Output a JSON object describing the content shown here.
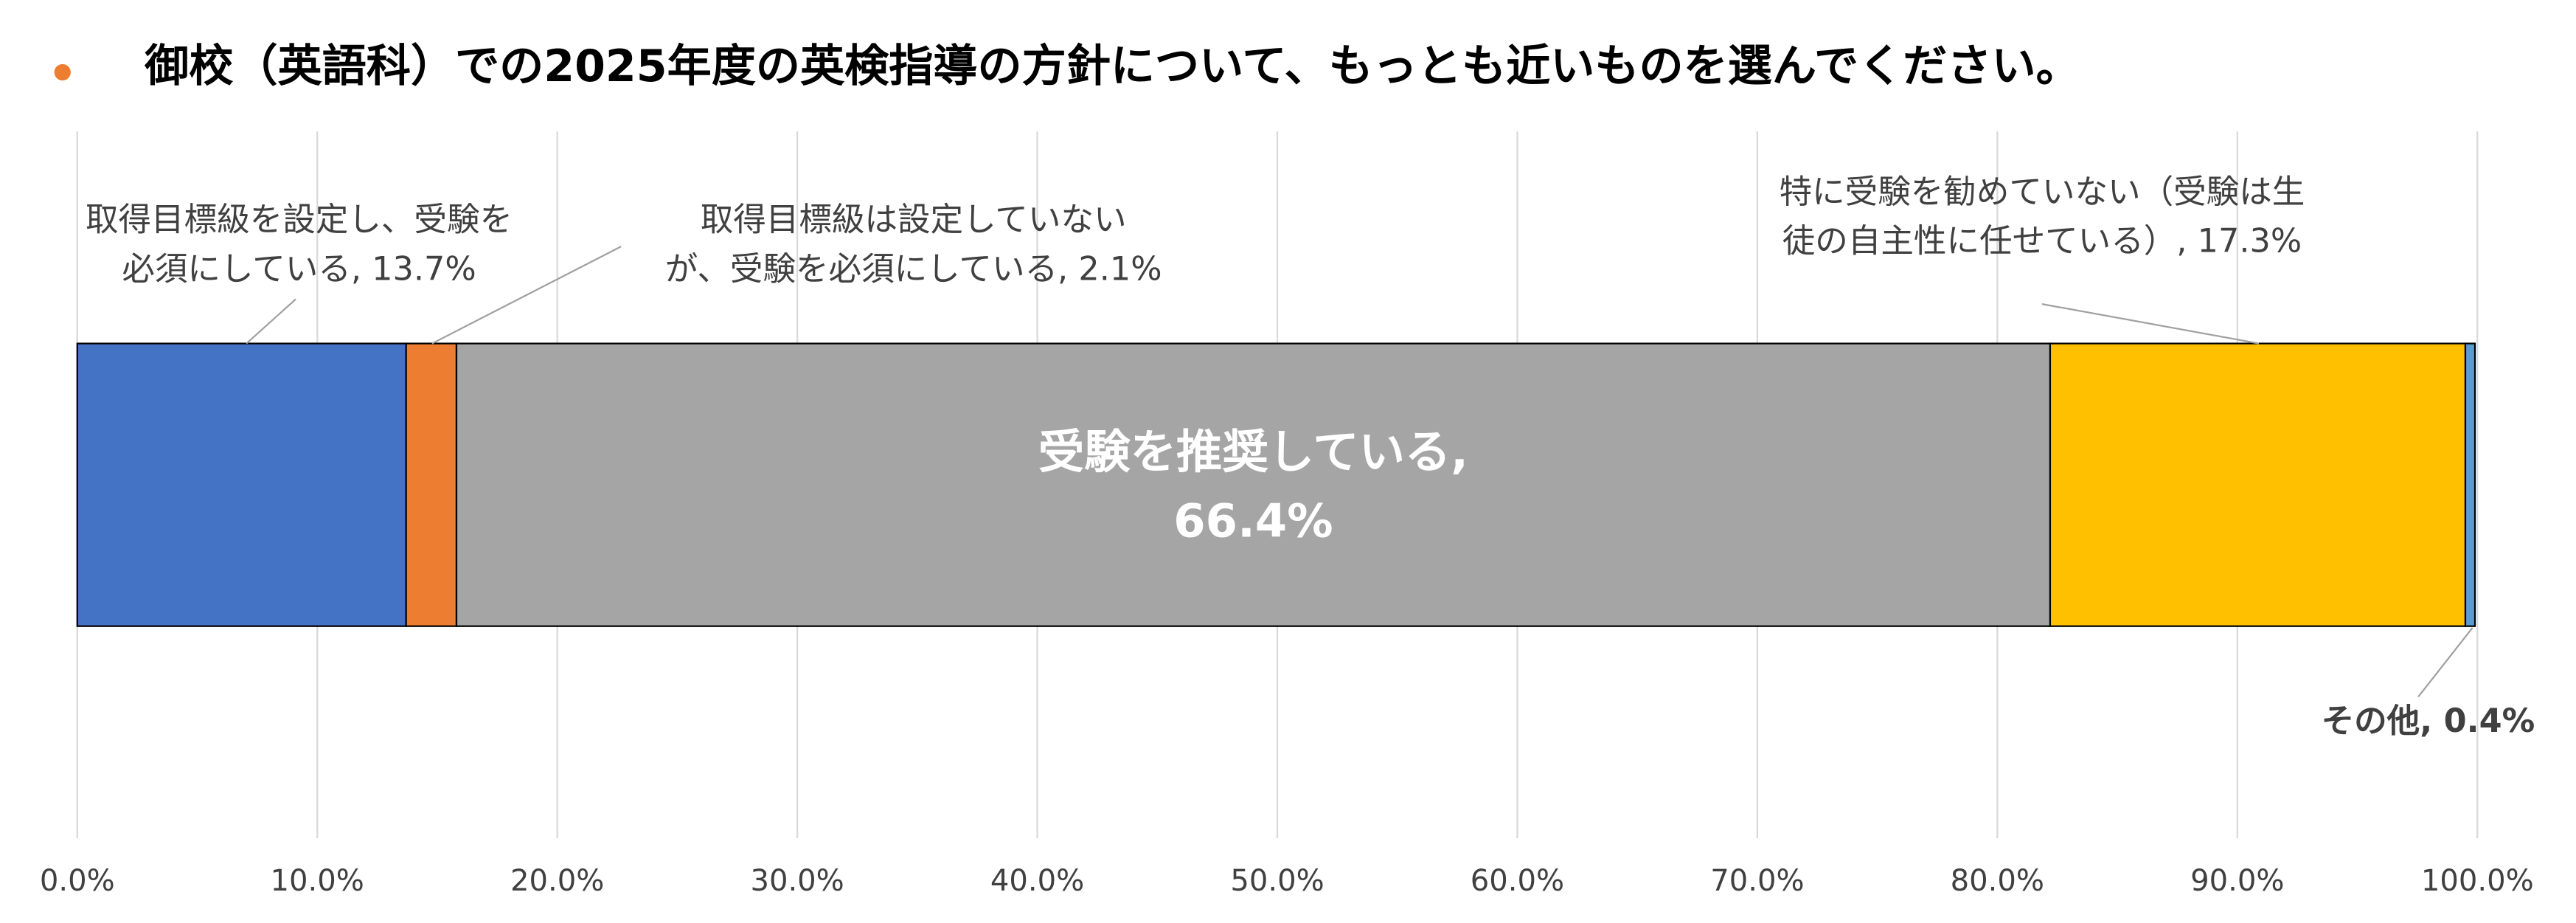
{
  "chart_data": {
    "type": "stacked-bar-horizontal",
    "title": "御校（英語科）での2025年度の英検指導の方針について、もっとも近いものを選んでください。",
    "series": [
      {
        "color": "#4472c4",
        "values": [
          13.7
        ],
        "value_labels": [
          "取得目標級を設定し、受験を\n必須にしている, 13.7%"
        ]
      },
      {
        "color": "#ed7d31",
        "values": [
          2.1
        ],
        "value_labels": [
          "取得目標級は設定していない\nが、受験を必須にしている, 2.1%"
        ]
      },
      {
        "color": "#a5a5a5",
        "values": [
          66.4
        ],
        "value_labels": [
          "受験を推奨している,\n66.4%"
        ]
      },
      {
        "color": "#ffc000",
        "values": [
          17.3
        ],
        "value_labels": [
          "特に受験を勧めていない（受験は生\n徒の自主性に任せている）, 17.3%"
        ]
      },
      {
        "color": "#5b9bd5",
        "values": [
          0.4
        ],
        "value_labels": [
          "その他, 0.4%"
        ]
      }
    ],
    "xlim": [
      0,
      100
    ],
    "xticks": [
      {
        "value": 0,
        "label": "0.0%"
      },
      {
        "value": 10,
        "label": "10.0%"
      },
      {
        "value": 20,
        "label": "20.0%"
      },
      {
        "value": 30,
        "label": "30.0%"
      },
      {
        "value": 40,
        "label": "40.0%"
      },
      {
        "value": 50,
        "label": "50.0%"
      },
      {
        "value": 60,
        "label": "60.0%"
      },
      {
        "value": 70,
        "label": "70.0%"
      },
      {
        "value": 80,
        "label": "80.0%"
      },
      {
        "value": 90,
        "label": "90.0%"
      },
      {
        "value": 100,
        "label": "100.0%"
      }
    ],
    "grid": true
  }
}
